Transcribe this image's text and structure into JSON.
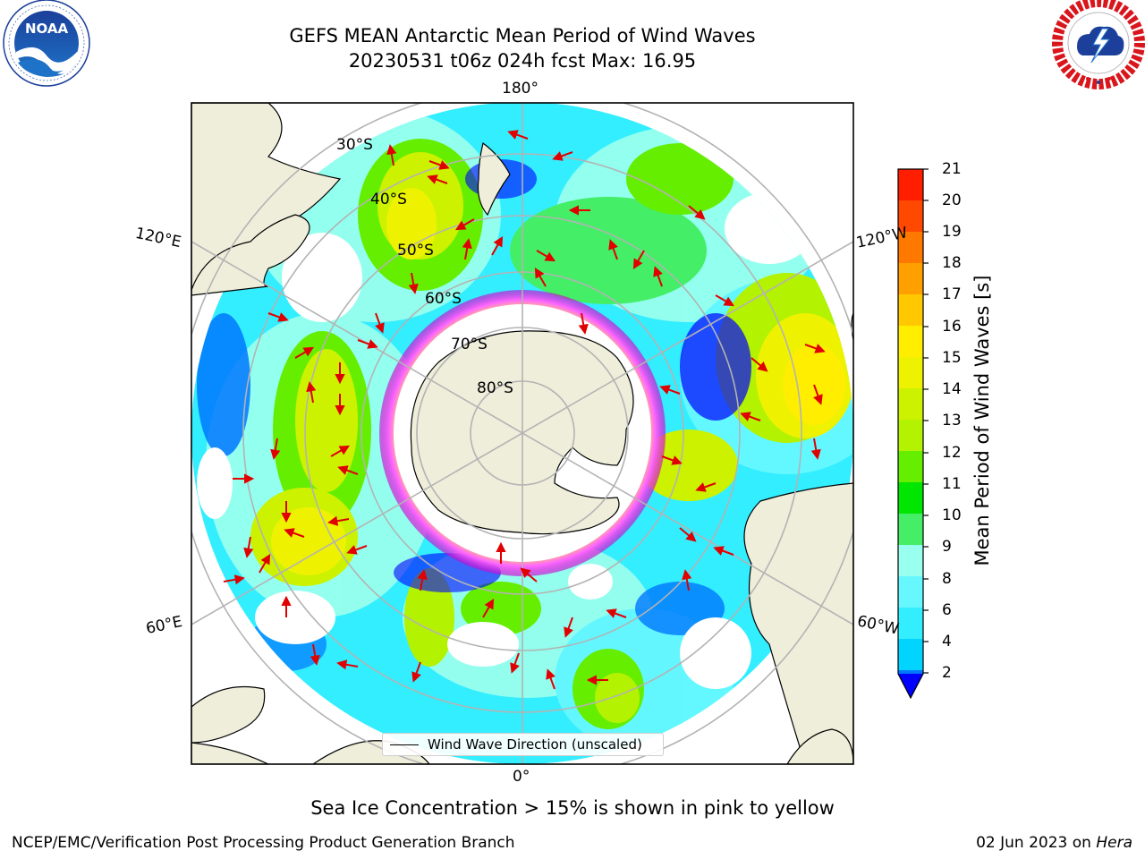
{
  "header": {
    "title_line1": "GEFS MEAN Antarctic Mean Period of Wind Waves",
    "title_line2": "20230531 t06z 024h fcst   Max: 16.95"
  },
  "logos": {
    "left": {
      "name": "noaa-logo",
      "text": "NOAA",
      "ring_text": "NATIONAL OCEANIC AND ATMOSPHERIC ADMINISTRATION · U.S. DEPARTMENT OF COMMERCE"
    },
    "right": {
      "name": "nws-logo",
      "ring_text": "NATIONAL WEATHER SERVICE"
    }
  },
  "map": {
    "projection": "south-polar-stereographic",
    "longitude_labels": {
      "top": "180°",
      "bottom": "0°",
      "upper_left": "120°E",
      "upper_right": "120°W",
      "lower_left": "60°E",
      "lower_right": "60°W"
    },
    "latitude_labels": [
      "30°S",
      "40°S",
      "50°S",
      "60°S",
      "70°S",
      "80°S"
    ],
    "legend_label": "Wind Wave Direction (unscaled)",
    "colors": {
      "land": "#efeedb",
      "sea_ice_low": "#ff44ff",
      "sea_ice_high": "#ffe14a",
      "arrow": "#ff0000",
      "grid": "#b3b3b3"
    }
  },
  "colorbar": {
    "label": "Mean Period of Wind Waves [s]",
    "unit": "s",
    "ticks": [
      "21",
      "20",
      "19",
      "18",
      "17",
      "16",
      "15",
      "14",
      "13",
      "12",
      "11",
      "10",
      "9",
      "8",
      "6",
      "4",
      "2"
    ],
    "levels": [
      2,
      4,
      6,
      7,
      8,
      9,
      10,
      11,
      12,
      13,
      14,
      15,
      16,
      17,
      18,
      19,
      20,
      21
    ],
    "colors": [
      "#0077ff",
      "#00d4ff",
      "#33eeff",
      "#66f7ff",
      "#99ffee",
      "#44ee66",
      "#00e600",
      "#66ee00",
      "#b3f200",
      "#ccf200",
      "#eef200",
      "#ffee00",
      "#ffc800",
      "#ffa000",
      "#ff7800",
      "#ff4800",
      "#ff1e00"
    ],
    "under_color": "#0000ff",
    "extend": "min"
  },
  "notes": {
    "sea_ice": "Sea Ice Concentration > 15% is shown in pink to yellow"
  },
  "footer": {
    "left": "NCEP/EMC/Verification Post Processing Product Generation Branch",
    "date": "02 Jun 2023 on ",
    "machine": "Hera"
  }
}
